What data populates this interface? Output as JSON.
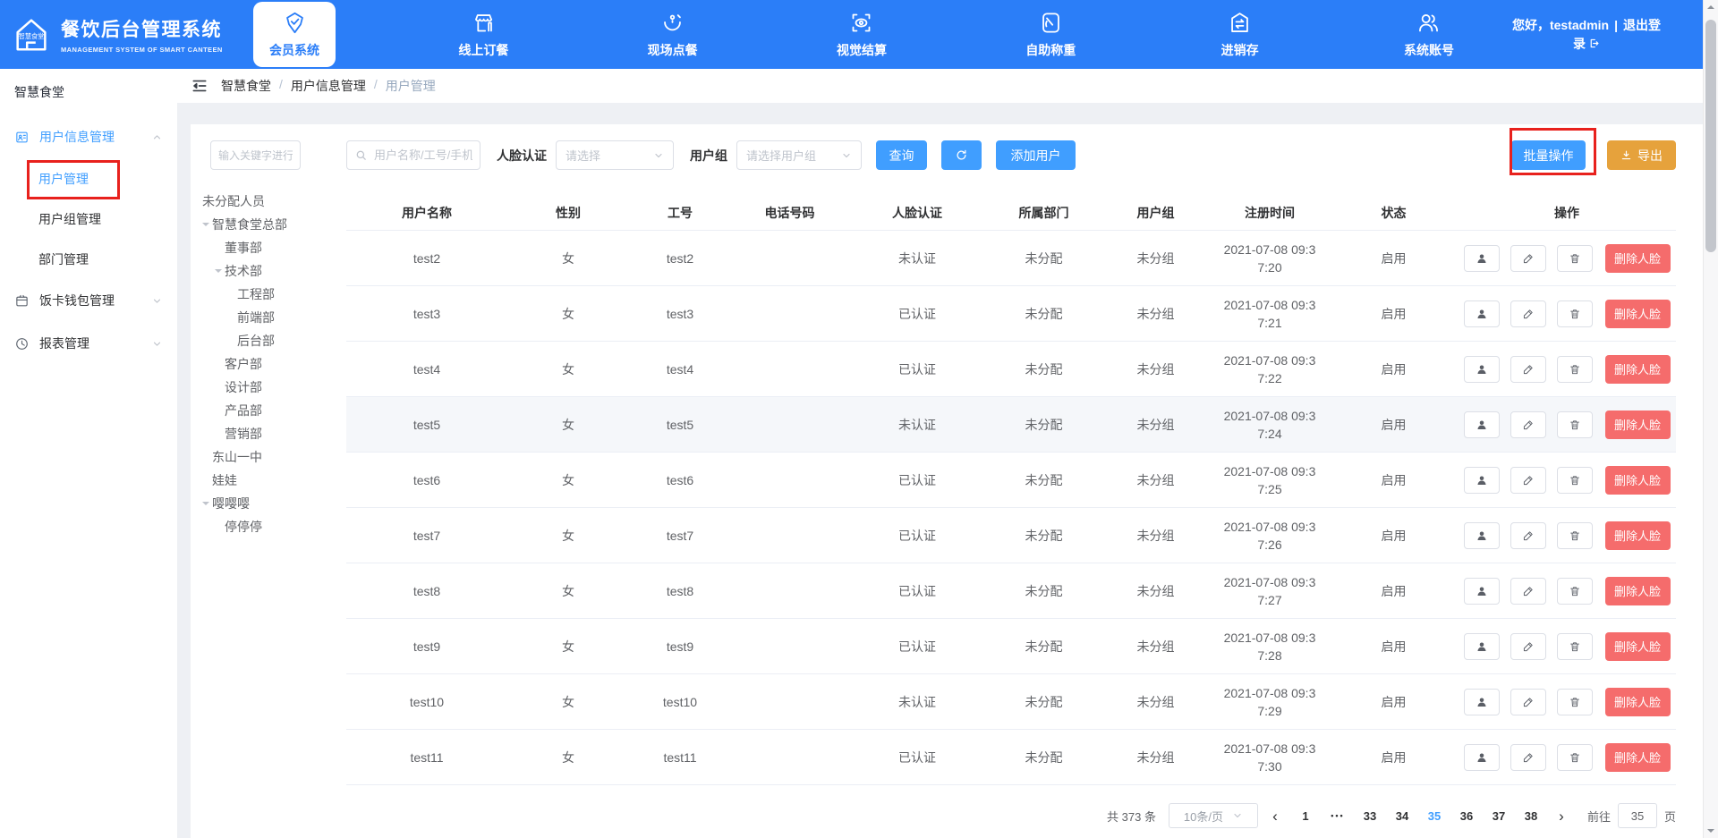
{
  "colors": {
    "header_bg": "#2b7ef8",
    "primary": "#409eff",
    "warning_btn": "#e6a23c",
    "danger_btn": "#f56c6c",
    "annotation_red": "#e8211d",
    "breadcrumb_current": "#97a8be"
  },
  "header": {
    "logo_badge": "智慧食堂",
    "title": "餐饮后台管理系统",
    "subtitle": "MANAGEMENT SYSTEM OF SMART CANTEEN",
    "nav": [
      {
        "label": "会员系统",
        "icon": "member-system-icon",
        "active": true
      },
      {
        "label": "线上订餐",
        "icon": "online-order-icon",
        "active": false
      },
      {
        "label": "现场点餐",
        "icon": "onsite-order-icon",
        "active": false
      },
      {
        "label": "视觉结算",
        "icon": "visual-checkout-icon",
        "active": false
      },
      {
        "label": "自助称重",
        "icon": "self-weigh-icon",
        "active": false
      },
      {
        "label": "进销存",
        "icon": "inventory-icon",
        "active": false
      },
      {
        "label": "系统账号",
        "icon": "system-account-icon",
        "active": false
      }
    ],
    "greeting": "您好，testadmin",
    "divider": "|",
    "logout_label": "退出登录"
  },
  "sidebar": {
    "title": "智慧食堂",
    "groups": [
      {
        "label": "用户信息管理",
        "icon": "user-info-icon",
        "expanded": true,
        "active": true,
        "children": [
          {
            "label": "用户管理",
            "active": true
          },
          {
            "label": "用户组管理",
            "active": false
          },
          {
            "label": "部门管理",
            "active": false
          }
        ]
      },
      {
        "label": "饭卡钱包管理",
        "icon": "meal-card-wallet-icon",
        "expanded": false,
        "active": false,
        "children": []
      },
      {
        "label": "报表管理",
        "icon": "report-icon",
        "expanded": false,
        "active": false,
        "children": []
      }
    ]
  },
  "breadcrumb": {
    "items": [
      "智慧食堂",
      "用户信息管理",
      "用户管理"
    ],
    "separator": "/"
  },
  "dept_panel": {
    "filter_placeholder": "输入关键字进行过滤",
    "standalone": "未分配人员",
    "tree": [
      {
        "label": "智慧食堂总部",
        "level": 0,
        "expandable": true
      },
      {
        "label": "董事部",
        "level": 1,
        "expandable": false
      },
      {
        "label": "技术部",
        "level": 1,
        "expandable": true
      },
      {
        "label": "工程部",
        "level": 2,
        "expandable": false
      },
      {
        "label": "前端部",
        "level": 2,
        "expandable": false
      },
      {
        "label": "后台部",
        "level": 2,
        "expandable": false
      },
      {
        "label": "客户部",
        "level": 1,
        "expandable": false
      },
      {
        "label": "设计部",
        "level": 1,
        "expandable": false
      },
      {
        "label": "产品部",
        "level": 1,
        "expandable": false
      },
      {
        "label": "营销部",
        "level": 1,
        "expandable": false
      },
      {
        "label": "东山一中",
        "level": 0,
        "expandable": false
      },
      {
        "label": "娃娃",
        "level": 0,
        "expandable": false
      },
      {
        "label": "嘤嘤嘤",
        "level": 0,
        "expandable": true
      },
      {
        "label": "停停停",
        "level": 1,
        "expandable": false
      }
    ]
  },
  "toolbar": {
    "search_placeholder": "用户名称/工号/手机号",
    "face_label": "人脸认证",
    "face_placeholder": "请选择",
    "group_label": "用户组",
    "group_placeholder": "请选择用户组",
    "query_label": "查询",
    "add_user_label": "添加用户",
    "batch_label": "批量操作",
    "export_label": "导出"
  },
  "table": {
    "columns": [
      "用户名称",
      "性别",
      "工号",
      "电话号码",
      "人脸认证",
      "所属部门",
      "用户组",
      "注册时间",
      "状态",
      "操作"
    ],
    "delete_face_label": "删除人脸",
    "rows": [
      {
        "name": "test2",
        "gender": "女",
        "job_no": "test2",
        "phone": "",
        "face": "未认证",
        "dept": "未分配",
        "group": "未分组",
        "reg_time": "2021-07-08 09:37:20",
        "status": "启用",
        "highlighted": false
      },
      {
        "name": "test3",
        "gender": "女",
        "job_no": "test3",
        "phone": "",
        "face": "已认证",
        "dept": "未分配",
        "group": "未分组",
        "reg_time": "2021-07-08 09:37:21",
        "status": "启用",
        "highlighted": false
      },
      {
        "name": "test4",
        "gender": "女",
        "job_no": "test4",
        "phone": "",
        "face": "已认证",
        "dept": "未分配",
        "group": "未分组",
        "reg_time": "2021-07-08 09:37:22",
        "status": "启用",
        "highlighted": false
      },
      {
        "name": "test5",
        "gender": "女",
        "job_no": "test5",
        "phone": "",
        "face": "未认证",
        "dept": "未分配",
        "group": "未分组",
        "reg_time": "2021-07-08 09:37:24",
        "status": "启用",
        "highlighted": true
      },
      {
        "name": "test6",
        "gender": "女",
        "job_no": "test6",
        "phone": "",
        "face": "已认证",
        "dept": "未分配",
        "group": "未分组",
        "reg_time": "2021-07-08 09:37:25",
        "status": "启用",
        "highlighted": false
      },
      {
        "name": "test7",
        "gender": "女",
        "job_no": "test7",
        "phone": "",
        "face": "已认证",
        "dept": "未分配",
        "group": "未分组",
        "reg_time": "2021-07-08 09:37:26",
        "status": "启用",
        "highlighted": false
      },
      {
        "name": "test8",
        "gender": "女",
        "job_no": "test8",
        "phone": "",
        "face": "已认证",
        "dept": "未分配",
        "group": "未分组",
        "reg_time": "2021-07-08 09:37:27",
        "status": "启用",
        "highlighted": false
      },
      {
        "name": "test9",
        "gender": "女",
        "job_no": "test9",
        "phone": "",
        "face": "已认证",
        "dept": "未分配",
        "group": "未分组",
        "reg_time": "2021-07-08 09:37:28",
        "status": "启用",
        "highlighted": false
      },
      {
        "name": "test10",
        "gender": "女",
        "job_no": "test10",
        "phone": "",
        "face": "未认证",
        "dept": "未分配",
        "group": "未分组",
        "reg_time": "2021-07-08 09:37:29",
        "status": "启用",
        "highlighted": false
      },
      {
        "name": "test11",
        "gender": "女",
        "job_no": "test11",
        "phone": "",
        "face": "已认证",
        "dept": "未分配",
        "group": "未分组",
        "reg_time": "2021-07-08 09:37:30",
        "status": "启用",
        "highlighted": false
      }
    ]
  },
  "pagination": {
    "total": "共 373 条",
    "page_size": "10条/页",
    "prev": "‹",
    "next": "›",
    "pages": [
      {
        "label": "1",
        "active": false,
        "ellipsis": false
      },
      {
        "label": "•••",
        "active": false,
        "ellipsis": true
      },
      {
        "label": "33",
        "active": false,
        "ellipsis": false
      },
      {
        "label": "34",
        "active": false,
        "ellipsis": false
      },
      {
        "label": "35",
        "active": true,
        "ellipsis": false
      },
      {
        "label": "36",
        "active": false,
        "ellipsis": false
      },
      {
        "label": "37",
        "active": false,
        "ellipsis": false
      },
      {
        "label": "38",
        "active": false,
        "ellipsis": false
      }
    ],
    "goto_label": "前往",
    "goto_value": "35",
    "goto_suffix": "页"
  }
}
